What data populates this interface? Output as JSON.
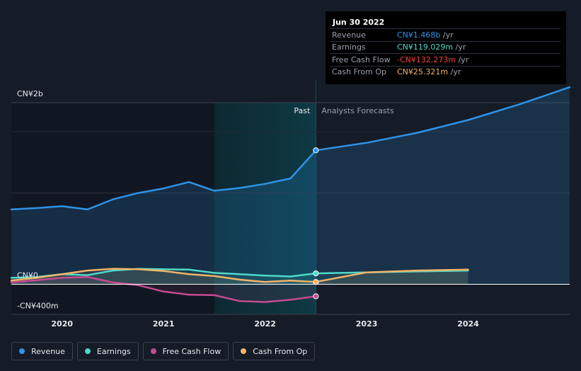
{
  "tooltip": {
    "date": "Jun 30 2022",
    "rows": [
      {
        "label": "Revenue",
        "value": "CN¥1.468b",
        "unit": " /yr",
        "color": "#2e93e8"
      },
      {
        "label": "Earnings",
        "value": "CN¥119.029m",
        "unit": " /yr",
        "color": "#4fd8c9"
      },
      {
        "label": "Free Cash Flow",
        "value": "-CN¥132.273m",
        "unit": " /yr",
        "color": "#f0423f"
      },
      {
        "label": "Cash From Op",
        "value": "CN¥25.321m",
        "unit": " /yr",
        "color": "#f2b466"
      }
    ]
  },
  "legend": [
    {
      "label": "Revenue",
      "color": "#2e93e8"
    },
    {
      "label": "Earnings",
      "color": "#4fd8c9"
    },
    {
      "label": "Free Cash Flow",
      "color": "#c54a91"
    },
    {
      "label": "Cash From Op",
      "color": "#f2b466"
    }
  ],
  "chart_data": {
    "type": "line",
    "y_tick_labels": [
      {
        "value": 2000,
        "label": "CN¥2b"
      },
      {
        "value": 0,
        "label": "CN¥0"
      },
      {
        "value": -400,
        "label": "-CN¥400m"
      }
    ],
    "ylim": [
      -330,
      1990
    ],
    "xlim": [
      2019.5,
      2025.0
    ],
    "x_ticks": [
      2020,
      2021,
      2022,
      2023,
      2024
    ],
    "x_tick_labels": [
      "2020",
      "2021",
      "2022",
      "2023",
      "2024"
    ],
    "past_label": "Past",
    "forecast_label": "Analysts Forecasts",
    "divider_x": 2022.5,
    "highlight_start_x": 2021.5,
    "series": [
      {
        "name": "Revenue",
        "color": "#2e93e8",
        "area": true,
        "points": [
          [
            2019.5,
            820
          ],
          [
            2019.75,
            835
          ],
          [
            2020.0,
            855
          ],
          [
            2020.25,
            820
          ],
          [
            2020.5,
            930
          ],
          [
            2020.75,
            1000
          ],
          [
            2021.0,
            1050
          ],
          [
            2021.25,
            1120
          ],
          [
            2021.5,
            1025
          ],
          [
            2021.75,
            1055
          ],
          [
            2022.0,
            1100
          ],
          [
            2022.25,
            1160
          ],
          [
            2022.5,
            1468
          ]
        ],
        "forecast": [
          [
            2022.5,
            1468
          ],
          [
            2023.0,
            1550
          ],
          [
            2023.5,
            1660
          ],
          [
            2024.0,
            1800
          ],
          [
            2024.5,
            1970
          ],
          [
            2025.0,
            2160
          ]
        ]
      },
      {
        "name": "Earnings",
        "color": "#4fd8c9",
        "area": false,
        "points": [
          [
            2019.5,
            70
          ],
          [
            2019.75,
            80
          ],
          [
            2020.0,
            110
          ],
          [
            2020.25,
            100
          ],
          [
            2020.5,
            150
          ],
          [
            2020.75,
            168
          ],
          [
            2021.0,
            165
          ],
          [
            2021.25,
            160
          ],
          [
            2021.5,
            125
          ],
          [
            2021.75,
            110
          ],
          [
            2022.0,
            95
          ],
          [
            2022.25,
            85
          ],
          [
            2022.5,
            119
          ]
        ],
        "forecast": [
          [
            2022.5,
            119
          ],
          [
            2023.0,
            130
          ],
          [
            2023.5,
            140
          ],
          [
            2024.0,
            150
          ]
        ]
      },
      {
        "name": "Free Cash Flow",
        "color": "#c54a91",
        "area": false,
        "points": [
          [
            2019.5,
            20
          ],
          [
            2019.75,
            45
          ],
          [
            2020.0,
            70
          ],
          [
            2020.25,
            80
          ],
          [
            2020.5,
            20
          ],
          [
            2020.75,
            -10
          ],
          [
            2021.0,
            -80
          ],
          [
            2021.25,
            -115
          ],
          [
            2021.5,
            -120
          ],
          [
            2021.75,
            -185
          ],
          [
            2022.0,
            -195
          ],
          [
            2022.25,
            -170
          ],
          [
            2022.5,
            -132
          ]
        ],
        "forecast": []
      },
      {
        "name": "Cash From Op",
        "color": "#f2b466",
        "area": false,
        "points": [
          [
            2019.5,
            40
          ],
          [
            2019.75,
            70
          ],
          [
            2020.0,
            110
          ],
          [
            2020.25,
            150
          ],
          [
            2020.5,
            170
          ],
          [
            2020.75,
            165
          ],
          [
            2021.0,
            145
          ],
          [
            2021.25,
            110
          ],
          [
            2021.5,
            90
          ],
          [
            2021.75,
            50
          ],
          [
            2022.0,
            25
          ],
          [
            2022.25,
            40
          ],
          [
            2022.5,
            25
          ]
        ],
        "forecast": [
          [
            2022.5,
            25
          ],
          [
            2023.0,
            130
          ],
          [
            2023.5,
            150
          ],
          [
            2024.0,
            160
          ]
        ]
      }
    ]
  }
}
